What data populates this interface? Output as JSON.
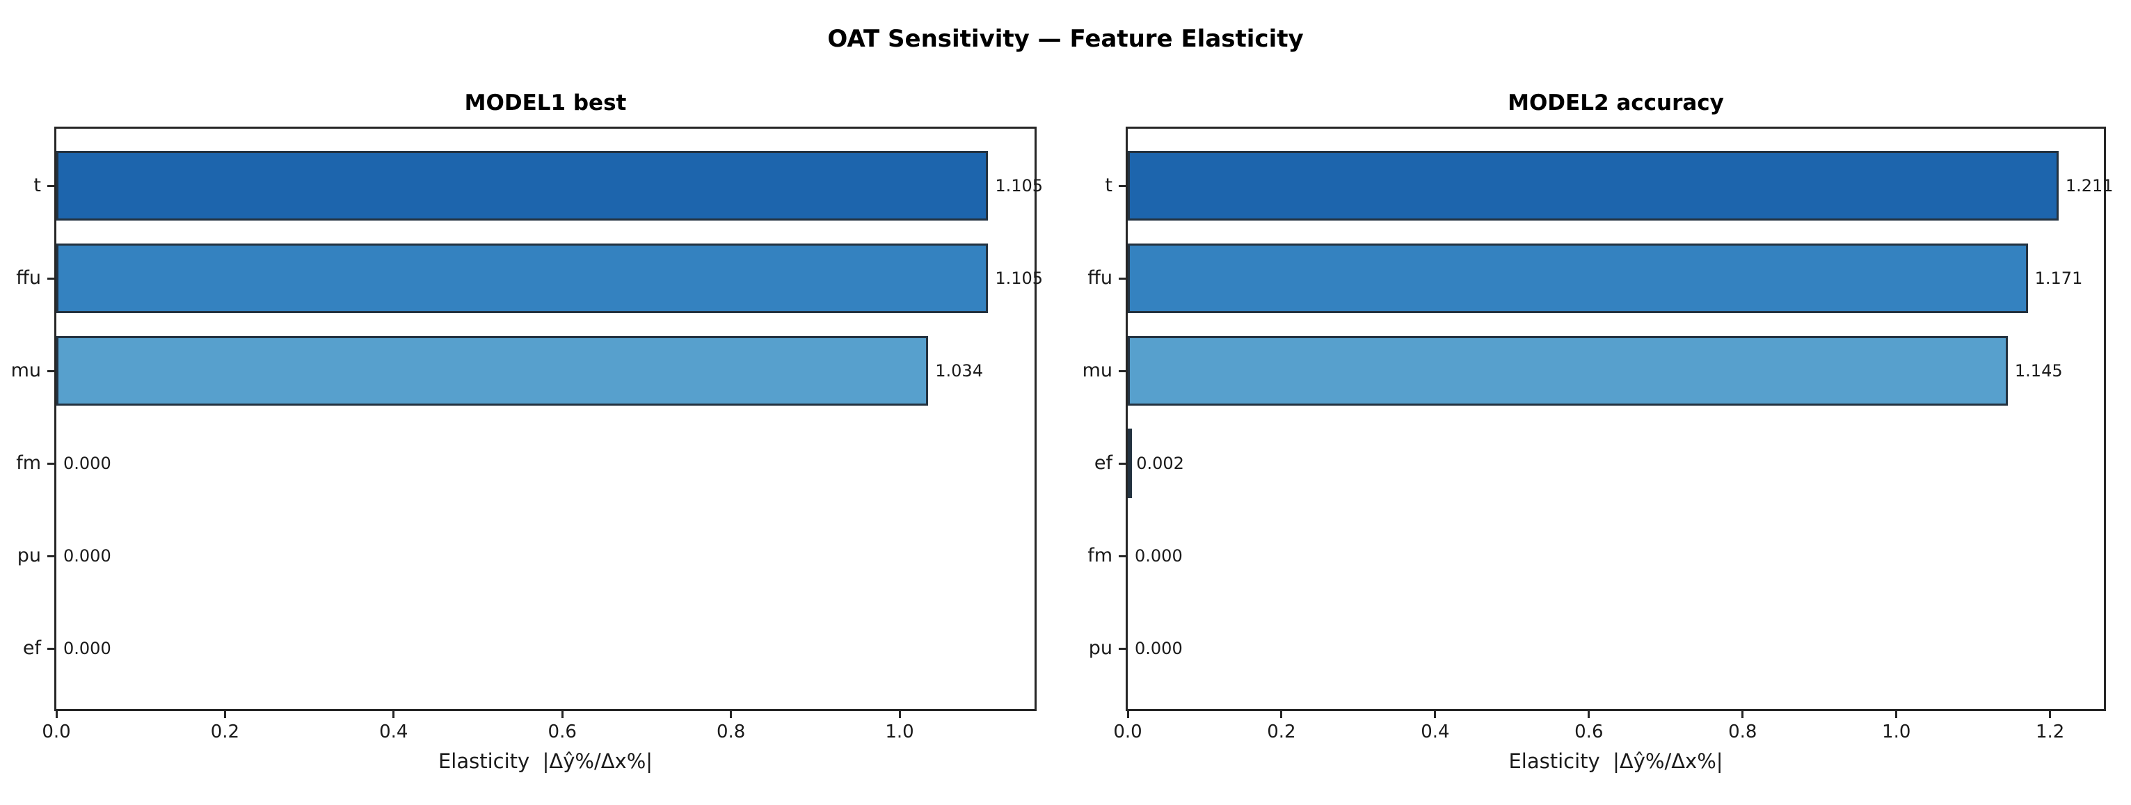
{
  "figure": {
    "title": "OAT Sensitivity — Feature Elasticity"
  },
  "chart_data": [
    {
      "type": "bar",
      "orientation": "horizontal",
      "title": "MODEL1 best",
      "categories": [
        "t",
        "ffu",
        "mu",
        "fm",
        "pu",
        "ef"
      ],
      "values": [
        1.105,
        1.105,
        1.034,
        0.0,
        0.0,
        0.0
      ],
      "value_labels": [
        "1.105",
        "1.105",
        "1.034",
        "0.000",
        "0.000",
        "0.000"
      ],
      "xlabel": "Elasticity  |Δŷ%/Δx%|",
      "xlim": [
        0,
        1.16
      ],
      "xticks": [
        0,
        0.2,
        0.4,
        0.6,
        0.8,
        1.0
      ],
      "xtick_labels": [
        "0.0",
        "0.2",
        "0.4",
        "0.6",
        "0.8",
        "1.0"
      ],
      "grid": false,
      "legend": false,
      "bar_colors": [
        "#1d65ad",
        "#3482c0",
        "#57a0cd",
        "#7fb9da",
        "#a5cde3",
        "#c7dcef"
      ],
      "bar_edge_color": "#233240"
    },
    {
      "type": "bar",
      "orientation": "horizontal",
      "title": "MODEL2 accuracy",
      "categories": [
        "t",
        "ffu",
        "mu",
        "ef",
        "fm",
        "pu"
      ],
      "values": [
        1.211,
        1.171,
        1.145,
        0.002,
        0.0,
        0.0
      ],
      "value_labels": [
        "1.211",
        "1.171",
        "1.145",
        "0.002",
        "0.000",
        "0.000"
      ],
      "xlabel": "Elasticity  |Δŷ%/Δx%|",
      "xlim": [
        0,
        1.27
      ],
      "xticks": [
        0,
        0.2,
        0.4,
        0.6,
        0.8,
        1.0,
        1.2
      ],
      "xtick_labels": [
        "0.0",
        "0.2",
        "0.4",
        "0.6",
        "0.8",
        "1.0",
        "1.2"
      ],
      "grid": false,
      "legend": false,
      "bar_colors": [
        "#1d65ad",
        "#3482c0",
        "#57a0cd",
        "#7fb9da",
        "#a5cde3",
        "#c7dcef"
      ],
      "bar_edge_color": "#233240"
    }
  ]
}
